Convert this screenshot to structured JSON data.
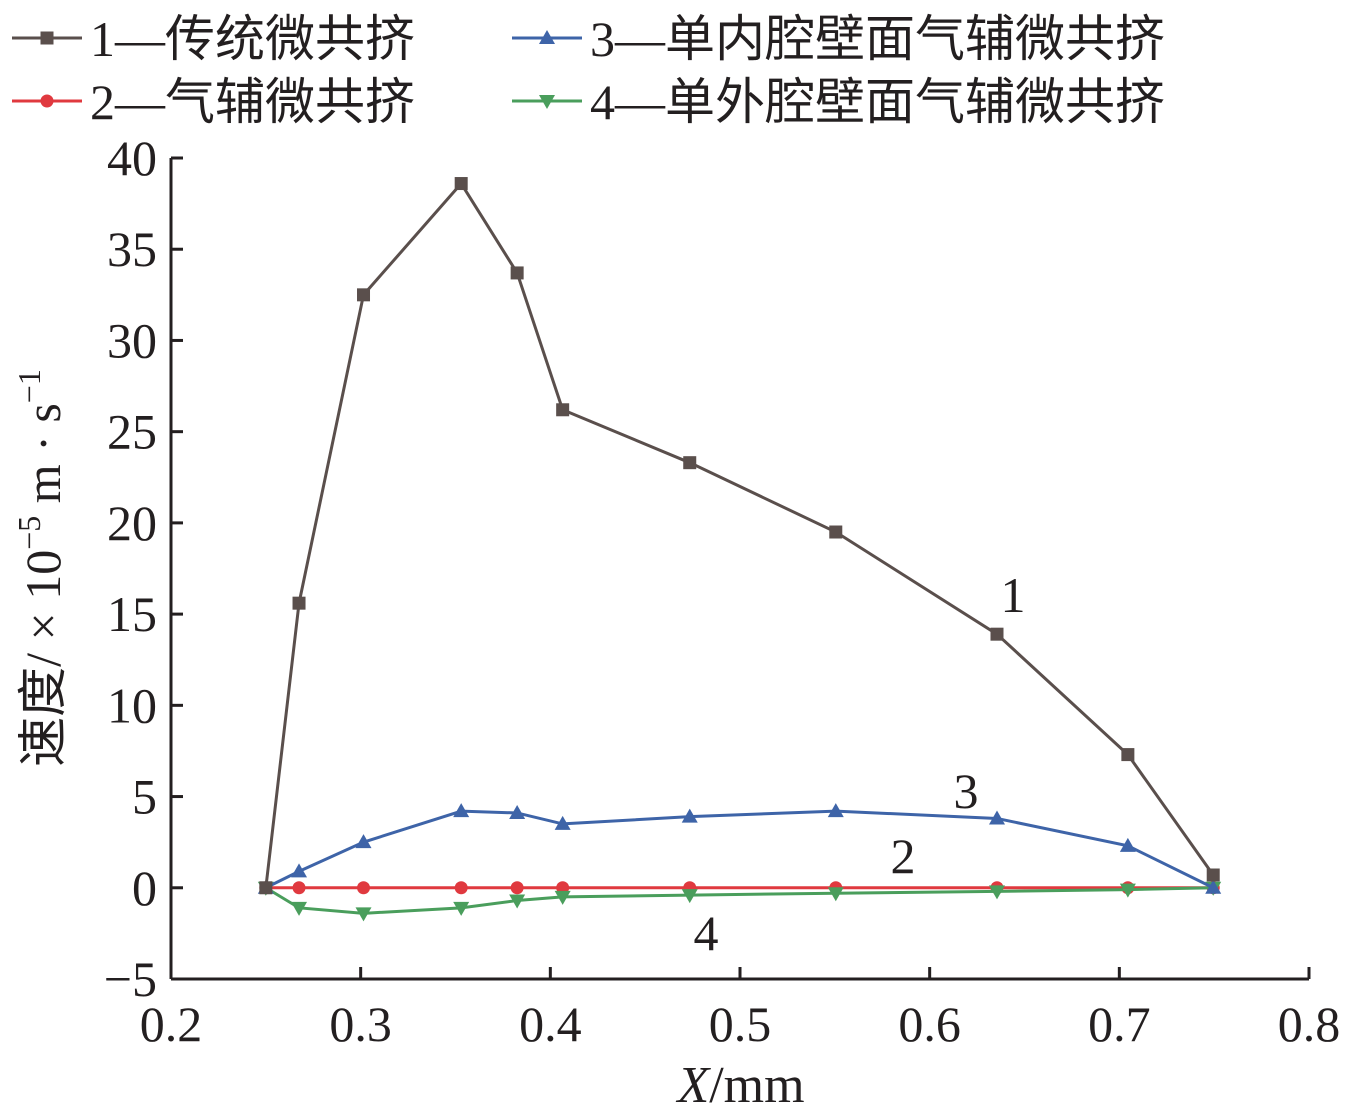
{
  "colors": {
    "axis": "#231f20",
    "series1": "#5a4f4c",
    "series2": "#e0393f",
    "series3": "#3e64a8",
    "series4": "#4a9e5c"
  },
  "chart_data": {
    "type": "line",
    "xlabel": "X/mm",
    "xlabel_italic_part": "X",
    "xlabel_rest": "/mm",
    "ylabel": "速度/×10−5 m·s−1",
    "ylabel_main": "速度/ × 10",
    "ylabel_exp1": "−5",
    "ylabel_unit": " m · s",
    "ylabel_exp2": "−1",
    "xlim": [
      0.2,
      0.8
    ],
    "ylim": [
      -5,
      40
    ],
    "xticks": [
      0.2,
      0.3,
      0.4,
      0.5,
      0.6,
      0.7,
      0.8
    ],
    "xtick_labels": [
      "0.2",
      "0.3",
      "0.4",
      "0.5",
      "0.6",
      "0.7",
      "0.8"
    ],
    "yticks": [
      -5,
      0,
      5,
      10,
      15,
      20,
      25,
      30,
      35,
      40
    ],
    "ytick_labels": [
      "−5",
      "0",
      "5",
      "10",
      "15",
      "20",
      "25",
      "30",
      "35",
      "40"
    ],
    "legend_position": "top",
    "legend": [
      {
        "label": "1—传统微共挤",
        "series": 0
      },
      {
        "label": "3—单内腔壁面气辅微共挤",
        "series": 2
      },
      {
        "label": "2—气辅微共挤",
        "series": 1
      },
      {
        "label": "4—单外腔壁面气辅微共挤",
        "series": 3
      }
    ],
    "series": [
      {
        "name": "1—传统微共挤",
        "marker": "square",
        "color": "#5a4f4c",
        "annotation": "1",
        "x": [
          0.25,
          0.2675,
          0.3015,
          0.353,
          0.3825,
          0.4065,
          0.4735,
          0.5505,
          0.6355,
          0.7045,
          0.7495
        ],
        "y": [
          0,
          15.6,
          32.5,
          38.6,
          33.7,
          26.2,
          23.3,
          19.5,
          13.9,
          7.3,
          0.7
        ]
      },
      {
        "name": "2—气辅微共挤",
        "marker": "circle",
        "color": "#e0393f",
        "annotation": "2",
        "x": [
          0.25,
          0.2675,
          0.3015,
          0.353,
          0.3825,
          0.4065,
          0.4735,
          0.5505,
          0.6355,
          0.7045,
          0.7495
        ],
        "y": [
          0,
          0,
          0,
          0,
          0,
          0,
          0,
          0,
          0,
          0,
          0
        ]
      },
      {
        "name": "3—单内腔壁面气辅微共挤",
        "marker": "triangle-up",
        "color": "#3e64a8",
        "annotation": "3",
        "x": [
          0.25,
          0.2675,
          0.3015,
          0.353,
          0.3825,
          0.4065,
          0.4735,
          0.5505,
          0.6355,
          0.7045,
          0.7495
        ],
        "y": [
          0,
          0.9,
          2.5,
          4.2,
          4.1,
          3.5,
          3.9,
          4.2,
          3.8,
          2.3,
          0
        ]
      },
      {
        "name": "4—单外腔壁面气辅微共挤",
        "marker": "triangle-down",
        "color": "#4a9e5c",
        "annotation": "4",
        "x": [
          0.25,
          0.2675,
          0.3015,
          0.353,
          0.3825,
          0.4065,
          0.4735,
          0.5505,
          0.6355,
          0.7045,
          0.7495
        ],
        "y": [
          0,
          -1.1,
          -1.4,
          -1.1,
          -0.7,
          -0.5,
          -0.4,
          -0.3,
          -0.2,
          -0.1,
          0
        ]
      }
    ]
  }
}
